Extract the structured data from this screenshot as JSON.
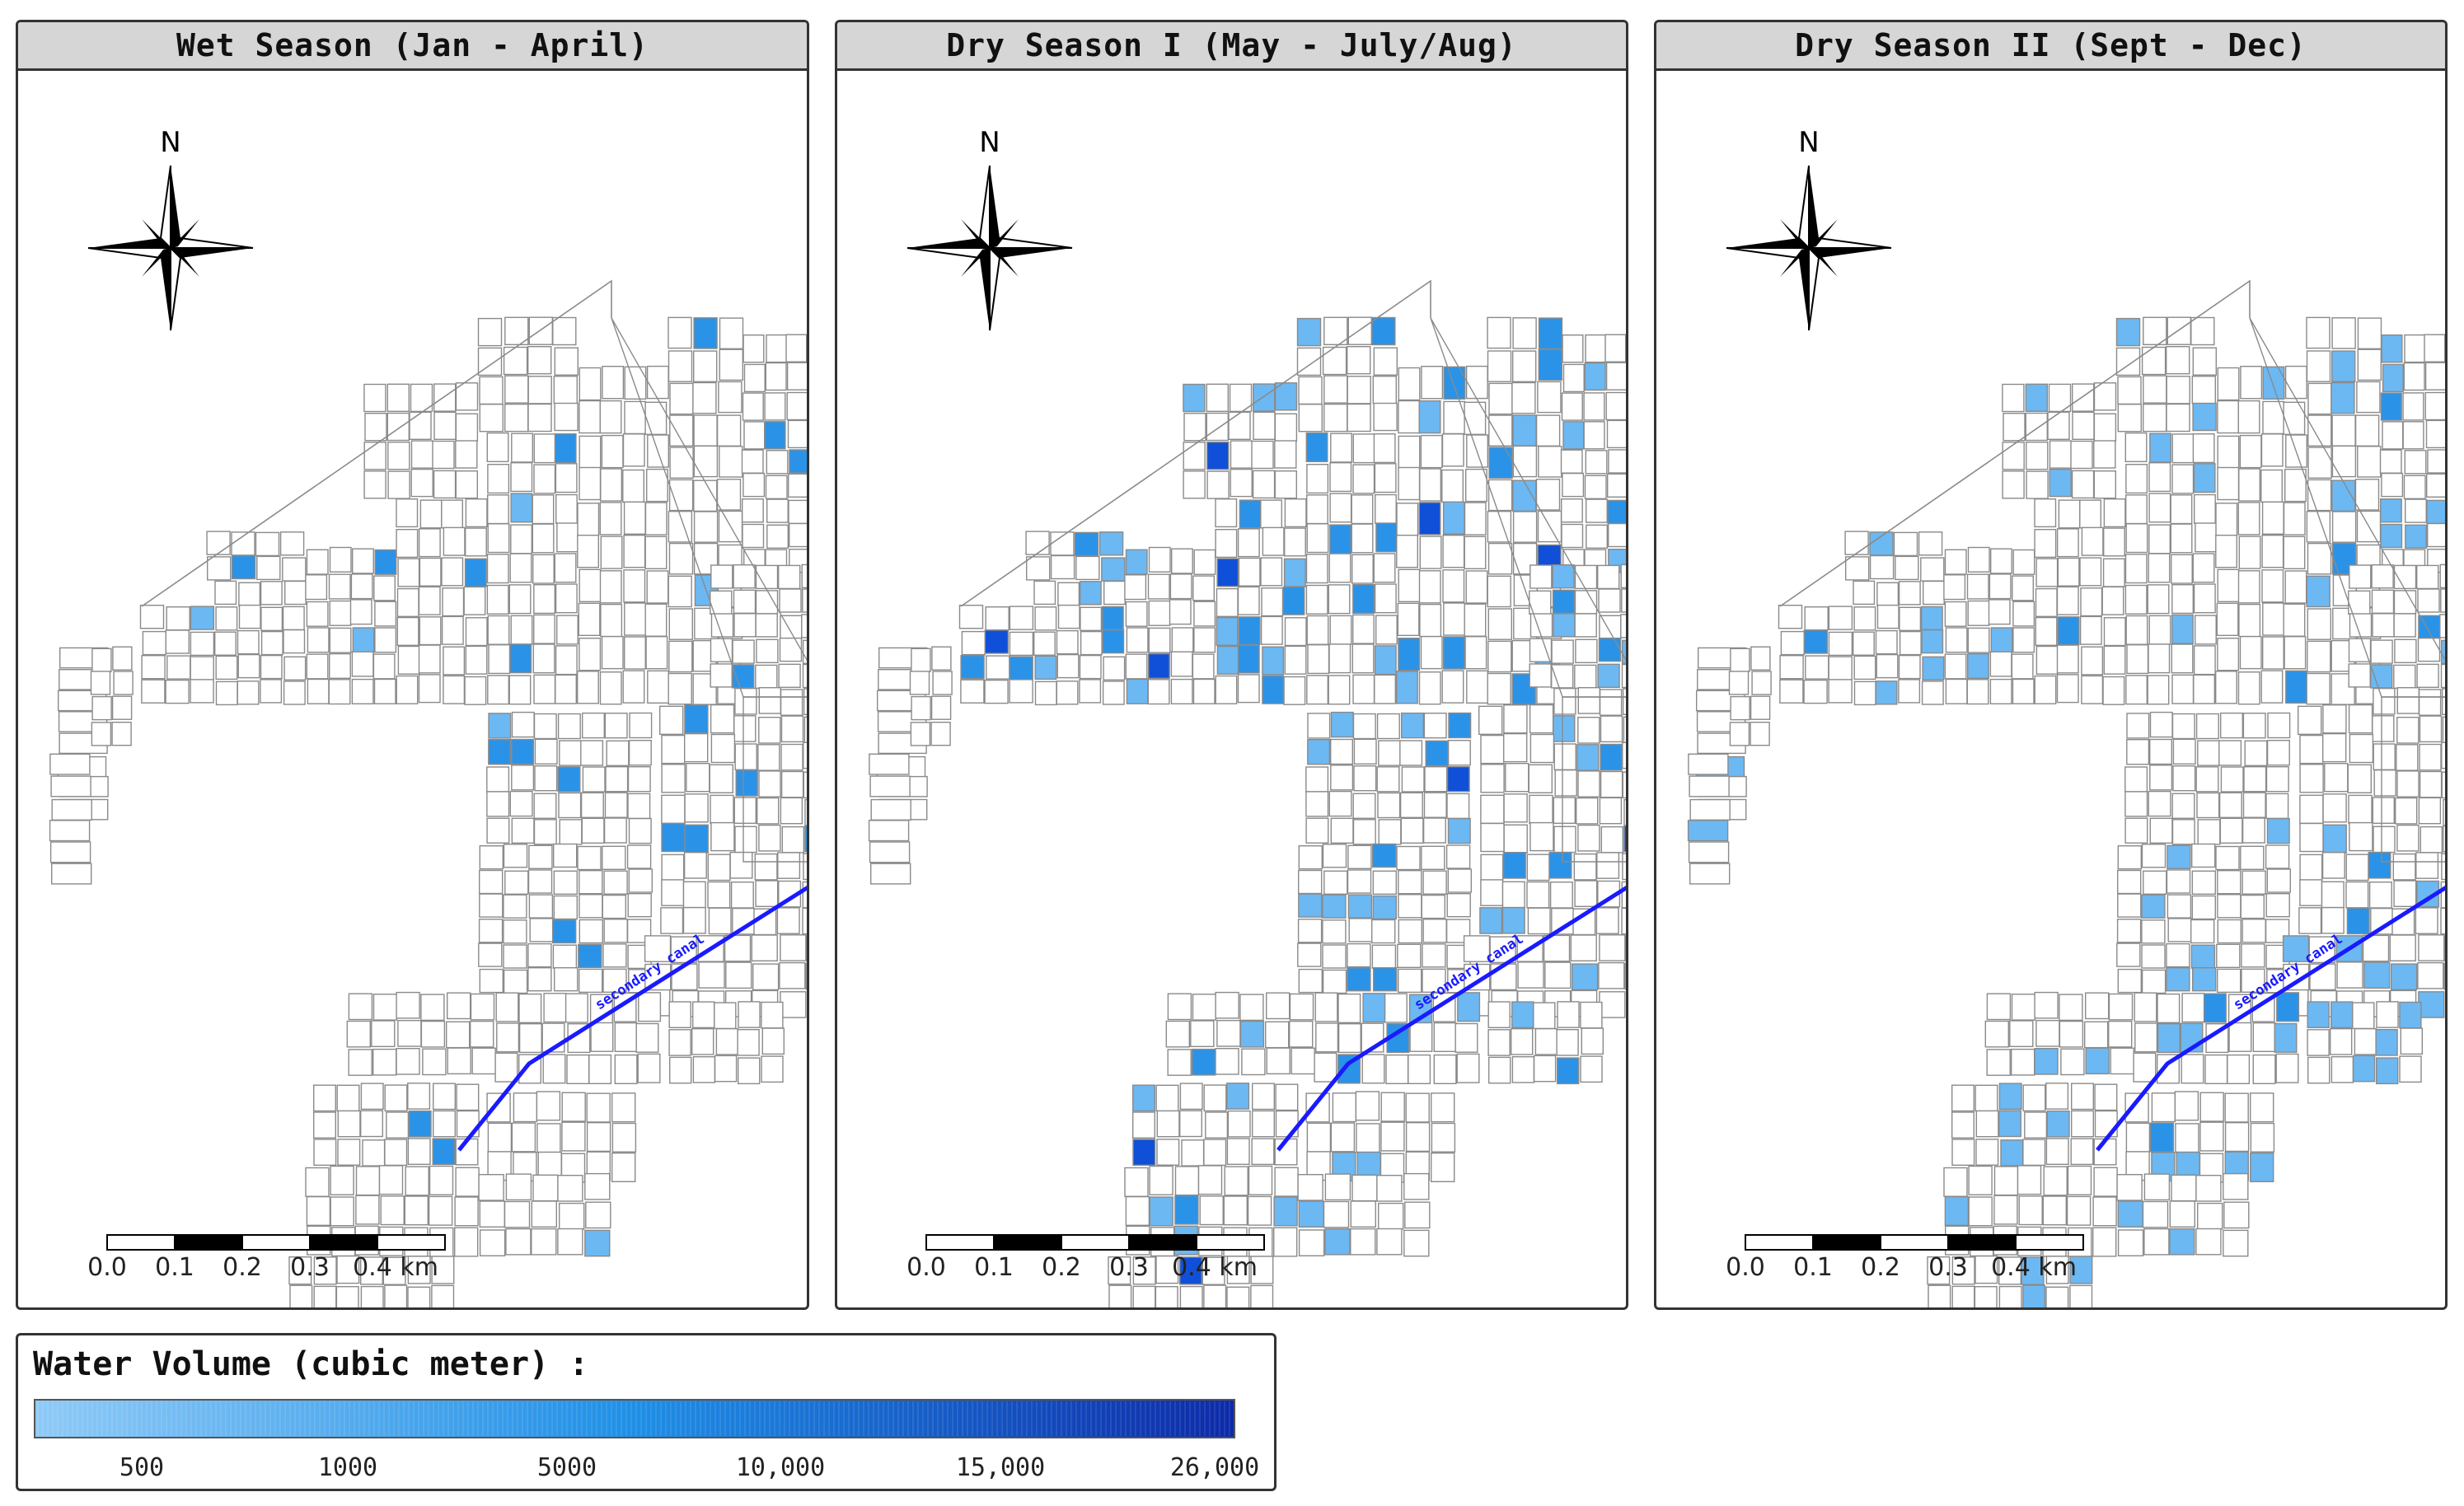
{
  "panels": [
    {
      "title": "Wet Season (Jan - April)",
      "season": "wet"
    },
    {
      "title": "Dry Season I (May - July/Aug)",
      "season": "dry1"
    },
    {
      "title": "Dry Season II (Sept - Dec)",
      "season": "dry2"
    }
  ],
  "compass": {
    "north_label": "N"
  },
  "scale_bar": {
    "labels": [
      "0.0",
      "0.1",
      "0.2",
      "0.3",
      "0.4 km"
    ]
  },
  "canal": {
    "label": "secondary canal",
    "color": "#1a1aff"
  },
  "legend": {
    "title": "Water Volume (cubic meter) :",
    "ticks": [
      "500",
      "1000",
      "5000",
      "10,000",
      "15,000",
      "26,000"
    ],
    "color_low": "#8fcaf7",
    "color_mid": "#1f8fe6",
    "color_high": "#0d2aa8"
  },
  "colors": {
    "plot_outline": "#8a8a8a",
    "light": "#6cb8f2",
    "medium": "#2a93e8",
    "dark": "#1050d8"
  }
}
